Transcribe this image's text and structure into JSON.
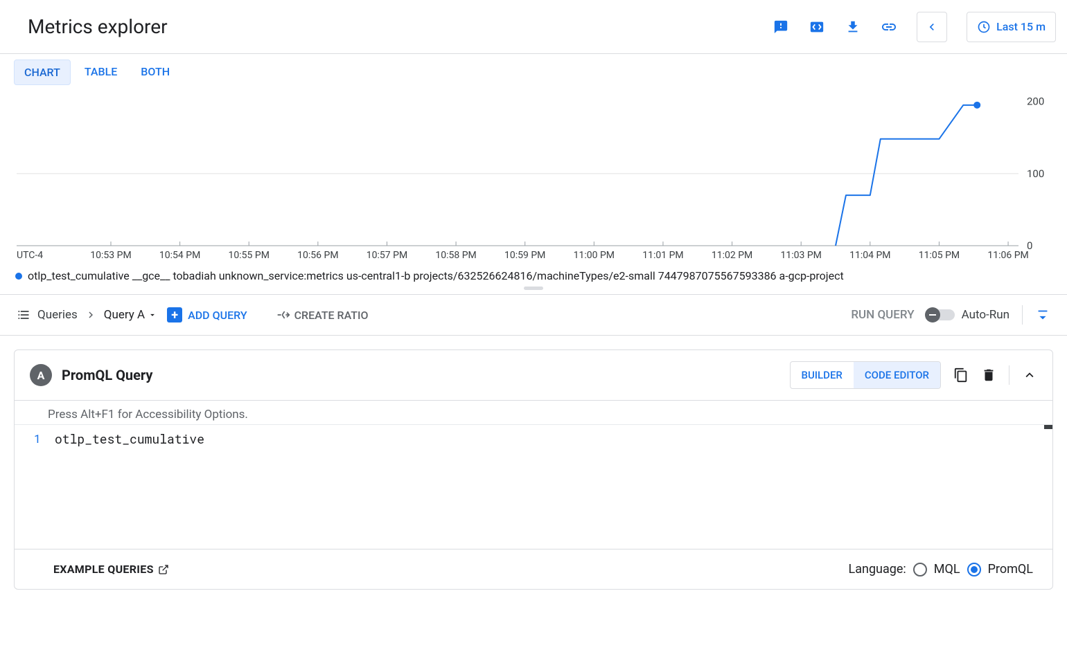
{
  "header": {
    "title": "Metrics explorer",
    "time_range_label": "Last 15 m"
  },
  "colors": {
    "accent": "#1a73e8",
    "grid": "#e0e0e0",
    "axis": "#9aa0a6",
    "text_muted": "#5f6368"
  },
  "view_tabs": {
    "items": [
      "CHART",
      "TABLE",
      "BOTH"
    ],
    "active_index": 0
  },
  "chart": {
    "type": "line",
    "timezone_label": "UTC-4",
    "x_ticks": [
      "10:53 PM",
      "10:54 PM",
      "10:55 PM",
      "10:56 PM",
      "10:57 PM",
      "10:58 PM",
      "10:59 PM",
      "11:00 PM",
      "11:01 PM",
      "11:02 PM",
      "11:03 PM",
      "11:04 PM",
      "11:05 PM",
      "11:06 PM"
    ],
    "y_ticks": [
      0,
      100,
      200
    ],
    "ylim": [
      0,
      215
    ],
    "series": {
      "color": "#1a73e8",
      "line_width": 2,
      "end_marker_radius": 5,
      "points": [
        {
          "x": "11:03:30",
          "xi": 10.5,
          "y": 0
        },
        {
          "x": "11:03:40",
          "xi": 10.65,
          "y": 70
        },
        {
          "x": "11:04:00",
          "xi": 11.0,
          "y": 70
        },
        {
          "x": "11:04:10",
          "xi": 11.15,
          "y": 148
        },
        {
          "x": "11:05:00",
          "xi": 12.0,
          "y": 148
        },
        {
          "x": "11:05:20",
          "xi": 12.35,
          "y": 195
        },
        {
          "x": "11:05:40",
          "xi": 12.55,
          "y": 195
        }
      ]
    },
    "legend_text": "otlp_test_cumulative __gce__ tobadiah unknown_service:metrics us-central1-b projects/632526624816/machineTypes/e2-small 7447987075567593386 a-gcp-project"
  },
  "query_toolbar": {
    "breadcrumb_root": "Queries",
    "current_query_label": "Query A",
    "add_query_label": "ADD QUERY",
    "create_ratio_label": "CREATE RATIO",
    "run_query_label": "RUN QUERY",
    "auto_run_label": "Auto-Run",
    "auto_run_on": false
  },
  "query_card": {
    "badge": "A",
    "title": "PromQL Query",
    "builder_label": "BUILDER",
    "code_editor_label": "CODE EDITOR",
    "active_mode": "code",
    "hint": "Press Alt+F1 for Accessibility Options.",
    "line_number": "1",
    "code": "otlp_test_cumulative",
    "example_label": "EXAMPLE QUERIES",
    "language_label": "Language:",
    "language_options": [
      "MQL",
      "PromQL"
    ],
    "language_selected": "PromQL"
  }
}
